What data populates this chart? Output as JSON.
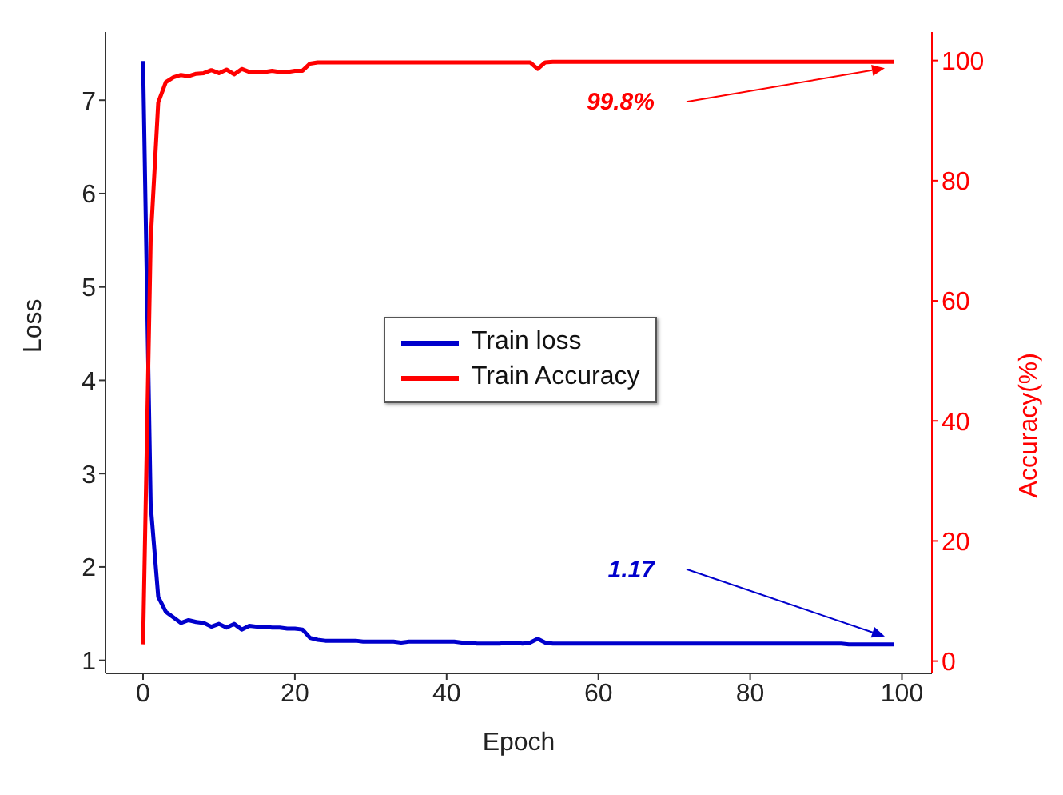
{
  "chart_data": {
    "type": "line",
    "xlabel": "Epoch",
    "ylabel": "Loss",
    "y2label": "Accuracy(%)",
    "x": [
      0,
      1,
      2,
      3,
      4,
      5,
      6,
      7,
      8,
      9,
      10,
      11,
      12,
      13,
      14,
      15,
      16,
      17,
      18,
      19,
      20,
      21,
      22,
      23,
      24,
      25,
      26,
      27,
      28,
      29,
      30,
      31,
      32,
      33,
      34,
      35,
      36,
      37,
      38,
      39,
      40,
      41,
      42,
      43,
      44,
      45,
      46,
      47,
      48,
      49,
      50,
      51,
      52,
      53,
      54,
      55,
      56,
      57,
      58,
      59,
      60,
      61,
      62,
      63,
      64,
      65,
      66,
      67,
      68,
      69,
      70,
      71,
      72,
      73,
      74,
      75,
      76,
      77,
      78,
      79,
      80,
      81,
      82,
      83,
      84,
      85,
      86,
      87,
      88,
      89,
      90,
      91,
      92,
      93,
      94,
      95,
      96,
      97,
      98,
      99
    ],
    "series": [
      {
        "name": "Train loss",
        "color": "#0000cc",
        "values": [
          7.42,
          2.67,
          1.68,
          1.52,
          1.46,
          1.4,
          1.43,
          1.41,
          1.4,
          1.36,
          1.39,
          1.35,
          1.39,
          1.33,
          1.37,
          1.36,
          1.36,
          1.35,
          1.35,
          1.34,
          1.34,
          1.33,
          1.24,
          1.22,
          1.21,
          1.21,
          1.21,
          1.21,
          1.21,
          1.2,
          1.2,
          1.2,
          1.2,
          1.2,
          1.19,
          1.2,
          1.2,
          1.2,
          1.2,
          1.2,
          1.2,
          1.2,
          1.19,
          1.19,
          1.18,
          1.18,
          1.18,
          1.18,
          1.19,
          1.19,
          1.18,
          1.19,
          1.23,
          1.19,
          1.18,
          1.18,
          1.18,
          1.18,
          1.18,
          1.18,
          1.18,
          1.18,
          1.18,
          1.18,
          1.18,
          1.18,
          1.18,
          1.18,
          1.18,
          1.18,
          1.18,
          1.18,
          1.18,
          1.18,
          1.18,
          1.18,
          1.18,
          1.18,
          1.18,
          1.18,
          1.18,
          1.18,
          1.18,
          1.18,
          1.18,
          1.18,
          1.18,
          1.18,
          1.18,
          1.18,
          1.18,
          1.18,
          1.18,
          1.17,
          1.17,
          1.17,
          1.17,
          1.17,
          1.17,
          1.17
        ]
      },
      {
        "name": "Train Accuracy",
        "color": "#ff0000",
        "axis": "y2",
        "values": [
          2.8,
          70,
          93.0,
          96.4,
          97.2,
          97.6,
          97.4,
          97.8,
          97.9,
          98.4,
          97.9,
          98.5,
          97.7,
          98.6,
          98.1,
          98.1,
          98.1,
          98.3,
          98.1,
          98.1,
          98.3,
          98.3,
          99.5,
          99.7,
          99.7,
          99.7,
          99.7,
          99.7,
          99.7,
          99.7,
          99.7,
          99.7,
          99.7,
          99.7,
          99.7,
          99.7,
          99.7,
          99.7,
          99.7,
          99.7,
          99.7,
          99.7,
          99.7,
          99.7,
          99.7,
          99.7,
          99.7,
          99.7,
          99.7,
          99.7,
          99.7,
          99.7,
          98.6,
          99.7,
          99.8,
          99.8,
          99.8,
          99.8,
          99.8,
          99.8,
          99.8,
          99.8,
          99.8,
          99.8,
          99.8,
          99.8,
          99.8,
          99.8,
          99.8,
          99.8,
          99.8,
          99.8,
          99.8,
          99.8,
          99.8,
          99.8,
          99.8,
          99.8,
          99.8,
          99.8,
          99.8,
          99.8,
          99.8,
          99.8,
          99.8,
          99.8,
          99.8,
          99.8,
          99.8,
          99.8,
          99.8,
          99.8,
          99.8,
          99.8,
          99.8,
          99.8,
          99.8,
          99.8,
          99.8,
          99.8
        ]
      }
    ],
    "xlim": [
      -4.95,
      103.95
    ],
    "xticks": [
      0,
      20,
      40,
      60,
      80,
      100
    ],
    "ylim": [
      0.86,
      7.73
    ],
    "yticks": [
      1,
      2,
      3,
      4,
      5,
      6,
      7
    ],
    "y2lim": [
      -2.05,
      104.75
    ],
    "y2ticks": [
      0,
      20,
      40,
      60,
      80,
      100
    ],
    "annotations": [
      "1.17",
      "99.8%"
    ],
    "legend": "center",
    "grid": false,
    "marker": "none",
    "line_style": "solid"
  }
}
